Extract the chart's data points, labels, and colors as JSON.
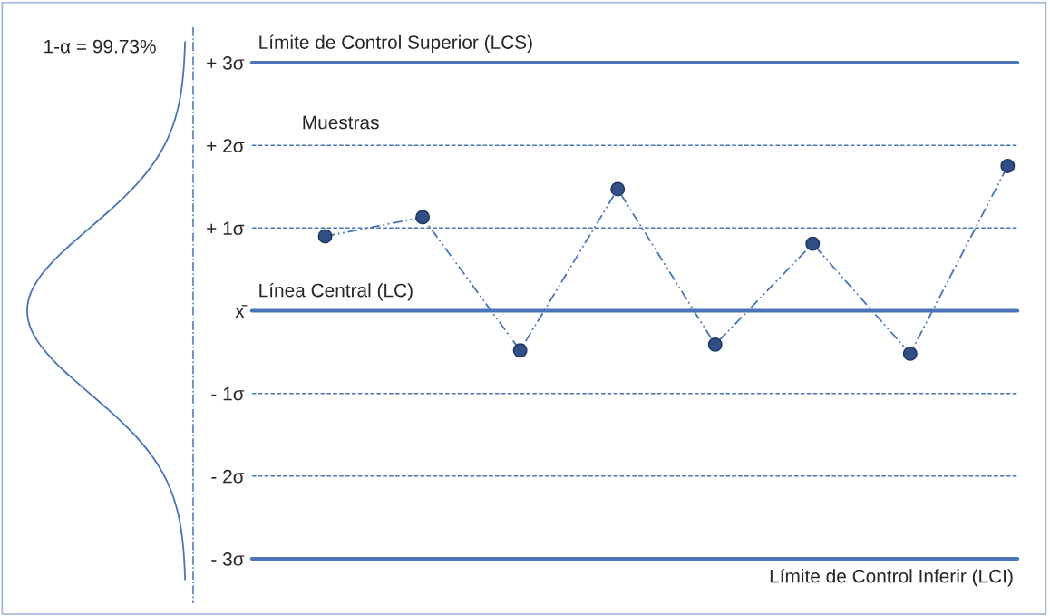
{
  "chart_data": {
    "type": "line",
    "categories": [
      null,
      null,
      null,
      null,
      null,
      null,
      null,
      null
    ],
    "series": [
      {
        "color": "#2f4f86",
        "values": [
          0.9,
          1.13,
          -0.48,
          1.47,
          -0.41,
          0.81,
          -0.52,
          1.75
        ]
      }
    ],
    "marker": "circle",
    "line_style": "dashed",
    "ylim": [
      -3,
      3
    ],
    "yticks": [
      {
        "value": 3,
        "label": "+ 3σ"
      },
      {
        "value": 2,
        "label": "+ 2σ"
      },
      {
        "value": 1,
        "label": "+ 1σ"
      },
      {
        "value": 0,
        "label": "x̄"
      },
      {
        "value": -1,
        "label": "- 1σ"
      },
      {
        "value": -2,
        "label": "- 2σ"
      },
      {
        "value": -3,
        "label": "- 3σ"
      }
    ],
    "ref_lines": [
      {
        "axis": "y",
        "value": 3,
        "label": "Límite de Control Superior (LCS)",
        "color": "#4a74b8",
        "line_style": "solid"
      },
      {
        "axis": "y",
        "value": 2,
        "color": "#4a74b8",
        "line_style": "dashed"
      },
      {
        "axis": "y",
        "value": 1,
        "color": "#4a74b8",
        "line_style": "dashed"
      },
      {
        "axis": "y",
        "value": 0,
        "label": "Línea Central (LC)",
        "color": "#4a74b8",
        "line_style": "solid"
      },
      {
        "axis": "y",
        "value": -1,
        "color": "#4a74b8",
        "line_style": "dashed"
      },
      {
        "axis": "y",
        "value": -2,
        "color": "#4a74b8",
        "line_style": "dashed"
      },
      {
        "axis": "y",
        "value": -3,
        "label": "Límite de Control Inferir (LCI)",
        "color": "#4a74b8",
        "line_style": "solid"
      }
    ],
    "annotations": [
      "1-α = 99.73%",
      "Muestras"
    ],
    "grid": false,
    "legend": false
  }
}
